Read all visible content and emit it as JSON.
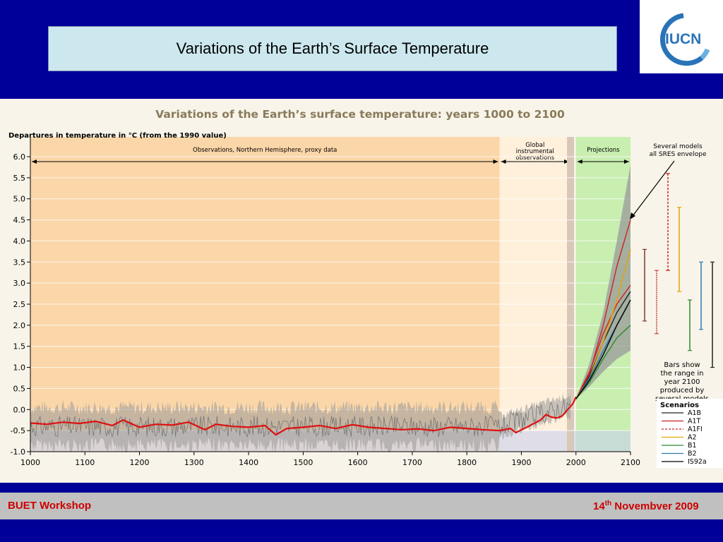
{
  "slide": {
    "title": "Variations of the Earth’s Surface Temperature",
    "logo_text": "IUCN",
    "footer_left": "BUET Workshop",
    "footer_right_day": "14",
    "footer_right_sup": "th",
    "footer_right_rest": "  Novembver 2009"
  },
  "chart_data": {
    "type": "line",
    "title": "Variations of the Earth’s surface temperature: years 1000 to 2100",
    "ylabel": "Departures in temperature in °C (from the 1990 value)",
    "xlim": [
      1000,
      2100
    ],
    "ylim": [
      -1.0,
      6.0
    ],
    "x_ticks": [
      1000,
      1100,
      1200,
      1300,
      1400,
      1500,
      1600,
      1700,
      1800,
      1900,
      2000,
      2100
    ],
    "y_ticks": [
      -1.0,
      -0.5,
      0.0,
      0.5,
      1.0,
      1.5,
      2.0,
      2.5,
      3.0,
      3.5,
      4.0,
      4.5,
      5.0,
      5.5,
      6.0
    ],
    "y_tick_labels": [
      "-1.0",
      "-0.5",
      "0.0",
      "0.5",
      "1.0",
      "1.5",
      "2.0",
      "2.5",
      "3.0",
      "3.5",
      "4.0",
      "4.5",
      "5.0",
      "5.5",
      "6.0"
    ],
    "regions": [
      {
        "label": "Observations, Northern Hemisphere, proxy data",
        "from": 1000,
        "to": 1860,
        "color": "#fbd6a8"
      },
      {
        "label": "Global instrumental observations",
        "from": 1860,
        "to": 1990,
        "color": "#fff0dc"
      },
      {
        "label": "Projections",
        "from": 2000,
        "to": 2100,
        "color": "#c8eeb0"
      }
    ],
    "observed_series": {
      "x": [
        1000,
        1030,
        1060,
        1090,
        1120,
        1150,
        1170,
        1200,
        1230,
        1260,
        1290,
        1320,
        1340,
        1370,
        1400,
        1430,
        1450,
        1470,
        1500,
        1530,
        1560,
        1590,
        1620,
        1650,
        1680,
        1710,
        1740,
        1770,
        1800,
        1830,
        1860,
        1880,
        1890,
        1900,
        1910,
        1920,
        1935,
        1945,
        1955,
        1965,
        1975,
        1985,
        1995,
        2000
      ],
      "y": [
        -0.32,
        -0.35,
        -0.3,
        -0.33,
        -0.28,
        -0.38,
        -0.25,
        -0.42,
        -0.35,
        -0.37,
        -0.3,
        -0.48,
        -0.35,
        -0.4,
        -0.42,
        -0.38,
        -0.6,
        -0.45,
        -0.42,
        -0.38,
        -0.45,
        -0.36,
        -0.42,
        -0.45,
        -0.48,
        -0.46,
        -0.5,
        -0.42,
        -0.45,
        -0.48,
        -0.5,
        -0.45,
        -0.55,
        -0.48,
        -0.42,
        -0.35,
        -0.25,
        -0.12,
        -0.18,
        -0.2,
        -0.15,
        0.0,
        0.15,
        0.3
      ]
    },
    "uncertainty_band": {
      "x": [
        1000,
        1860
      ],
      "lower": -1.1,
      "upper": 0.3
    },
    "projection_envelope": {
      "x": [
        2000,
        2025,
        2050,
        2075,
        2100
      ],
      "lower": [
        0.25,
        0.55,
        0.9,
        1.2,
        1.4
      ],
      "upper": [
        0.25,
        1.1,
        2.3,
        4.0,
        5.8
      ]
    },
    "envelope_label": "Several models all SRES envelope",
    "series": [
      {
        "name": "A1B",
        "color": "#222222",
        "x": [
          2000,
          2025,
          2050,
          2075,
          2100
        ],
        "y": [
          0.25,
          0.8,
          1.6,
          2.3,
          2.8
        ]
      },
      {
        "name": "A1T",
        "color": "#cc2222",
        "x": [
          2000,
          2025,
          2050,
          2075,
          2100
        ],
        "y": [
          0.25,
          0.9,
          1.8,
          2.5,
          2.95
        ]
      },
      {
        "name": "A1FI",
        "color": "#cc2222",
        "x": [
          2000,
          2025,
          2050,
          2075,
          2100
        ],
        "y": [
          0.25,
          0.85,
          2.0,
          3.4,
          4.5
        ]
      },
      {
        "name": "A2",
        "color": "#e8a300",
        "x": [
          2000,
          2025,
          2050,
          2075,
          2100
        ],
        "y": [
          0.25,
          0.75,
          1.6,
          2.6,
          3.8
        ]
      },
      {
        "name": "B1",
        "color": "#2a8a2a",
        "x": [
          2000,
          2025,
          2050,
          2075,
          2100
        ],
        "y": [
          0.25,
          0.65,
          1.2,
          1.7,
          2.0
        ]
      },
      {
        "name": "B2",
        "color": "#2a7ab0",
        "x": [
          2000,
          2025,
          2050,
          2075,
          2100
        ],
        "y": [
          0.25,
          0.75,
          1.4,
          2.0,
          2.6
        ]
      },
      {
        "name": "IS92a",
        "color": "#000000",
        "x": [
          2000,
          2025,
          2050,
          2075,
          2100
        ],
        "y": [
          0.25,
          0.7,
          1.3,
          2.0,
          2.6
        ]
      }
    ],
    "range_bars": [
      {
        "name": "A1B",
        "color": "#7a3a2a",
        "low": 2.1,
        "high": 3.8
      },
      {
        "name": "A1T",
        "color": "#cc4444",
        "low": 1.8,
        "high": 3.3
      },
      {
        "name": "A1FI",
        "color": "#cc2222",
        "low": 3.3,
        "high": 5.6
      },
      {
        "name": "A2",
        "color": "#e8a300",
        "low": 2.8,
        "high": 4.8
      },
      {
        "name": "B1",
        "color": "#2a8a2a",
        "low": 1.4,
        "high": 2.6
      },
      {
        "name": "B2",
        "color": "#2a7ab0",
        "low": 1.9,
        "high": 3.5
      },
      {
        "name": "IS92a",
        "color": "#222222",
        "low": 1.0,
        "high": 3.5
      }
    ],
    "range_bar_note": "Bars show the range in year 2100 produced by several models",
    "legend_title": "Scenarios",
    "legend_placement": "bottom-right",
    "grid": true
  }
}
